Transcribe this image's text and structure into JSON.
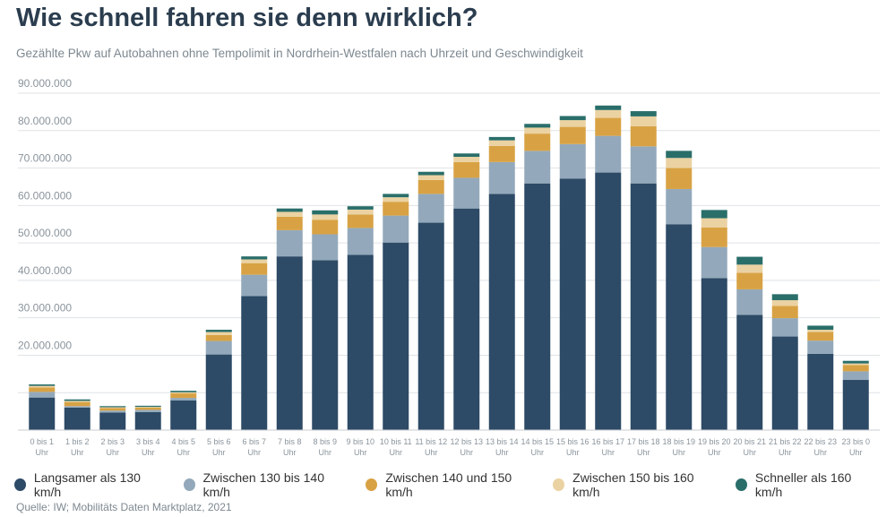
{
  "chart_data": {
    "type": "bar",
    "stacked": true,
    "title": "Wie schnell fahren sie denn wirklich?",
    "subtitle": "Gezählte Pkw auf Autobahnen ohne Tempolimit in Nordrhein-Westfalen nach Uhrzeit und Geschwindigkeit",
    "source": "Quelle: IW; Mobilitäts Daten Marktplatz, 2021",
    "ylim": [
      0,
      90000000
    ],
    "yticks": [
      10000000,
      20000000,
      30000000,
      40000000,
      50000000,
      60000000,
      70000000,
      80000000,
      90000000
    ],
    "ytick_labels": [
      "",
      "20.000.000",
      "30.000.000",
      "40.000.000",
      "50.000.000",
      "60.000.000",
      "70.000.000",
      "80.000.000",
      "90.000.000"
    ],
    "grid": true,
    "legend_position": "bottom",
    "categories": [
      [
        "0 bis 1",
        "Uhr"
      ],
      [
        "1 bis 2",
        "Uhr"
      ],
      [
        "2 bis 3",
        "Uhr"
      ],
      [
        "3 bis 4",
        "Uhr"
      ],
      [
        "4 bis 5",
        "Uhr"
      ],
      [
        "5 bis 6",
        "Uhr"
      ],
      [
        "6 bis 7",
        "Uhr"
      ],
      [
        "7 bis 8",
        "Uhr"
      ],
      [
        "8 bis 9",
        "Uhr"
      ],
      [
        "9 bis 10",
        "Uhr"
      ],
      [
        "10 bis 11",
        "Uhr"
      ],
      [
        "11 bis 12",
        "Uhr"
      ],
      [
        "12 bis 13",
        "Uhr"
      ],
      [
        "13 bis 14",
        "Uhr"
      ],
      [
        "14 bis 15",
        "Uhr"
      ],
      [
        "15 bis 16",
        "Uhr"
      ],
      [
        "16 bis 17",
        "Uhr"
      ],
      [
        "17 bis 18",
        "Uhr"
      ],
      [
        "18 bis 19",
        "Uhr"
      ],
      [
        "19 bis 20",
        "Uhr"
      ],
      [
        "20 bis 21",
        "Uhr"
      ],
      [
        "21 bis 22",
        "Uhr"
      ],
      [
        "22 bis 23",
        "Uhr"
      ],
      [
        "23 bis 0",
        "Uhr"
      ]
    ],
    "series": [
      {
        "name": "Langsamer als 130 km/h",
        "color": "#2d4a66",
        "values": [
          8700000,
          6000000,
          4700000,
          4800000,
          7900000,
          20200000,
          35800000,
          46400000,
          45400000,
          46800000,
          50100000,
          55400000,
          59200000,
          63100000,
          65900000,
          67200000,
          68800000,
          65900000,
          55000000,
          40600000,
          30800000,
          25000000,
          20400000,
          13400000
        ]
      },
      {
        "name": "Zwischen 130 bis 140 km/h",
        "color": "#93a9bb",
        "values": [
          1500000,
          400000,
          500000,
          600000,
          700000,
          3600000,
          5700000,
          7000000,
          6900000,
          7200000,
          7200000,
          7700000,
          8200000,
          8500000,
          8700000,
          9200000,
          9800000,
          9900000,
          9400000,
          8300000,
          6800000,
          4900000,
          3500000,
          2300000
        ]
      },
      {
        "name": "Zwischen 140 und 150 km/h",
        "color": "#d8a244",
        "values": [
          1200000,
          1100000,
          700000,
          600000,
          1200000,
          1600000,
          3100000,
          3600000,
          3900000,
          3600000,
          3700000,
          3700000,
          4200000,
          4300000,
          4600000,
          4600000,
          4800000,
          5400000,
          5600000,
          5200000,
          4400000,
          3300000,
          2300000,
          1700000
        ]
      },
      {
        "name": "Zwischen 150 bis 160 km/h",
        "color": "#ebd2a2",
        "values": [
          400000,
          300000,
          200000,
          200000,
          300000,
          800000,
          1000000,
          1300000,
          1400000,
          1300000,
          1200000,
          1300000,
          1400000,
          1500000,
          1600000,
          1800000,
          2100000,
          2600000,
          2700000,
          2500000,
          2200000,
          1500000,
          600000,
          400000
        ]
      },
      {
        "name": "Schneller als 160 km/h",
        "color": "#2a6e6a",
        "values": [
          400000,
          400000,
          300000,
          300000,
          400000,
          600000,
          800000,
          900000,
          1100000,
          900000,
          900000,
          900000,
          900000,
          900000,
          1000000,
          1100000,
          1200000,
          1400000,
          1900000,
          2200000,
          2100000,
          1600000,
          1100000,
          700000
        ]
      }
    ]
  }
}
